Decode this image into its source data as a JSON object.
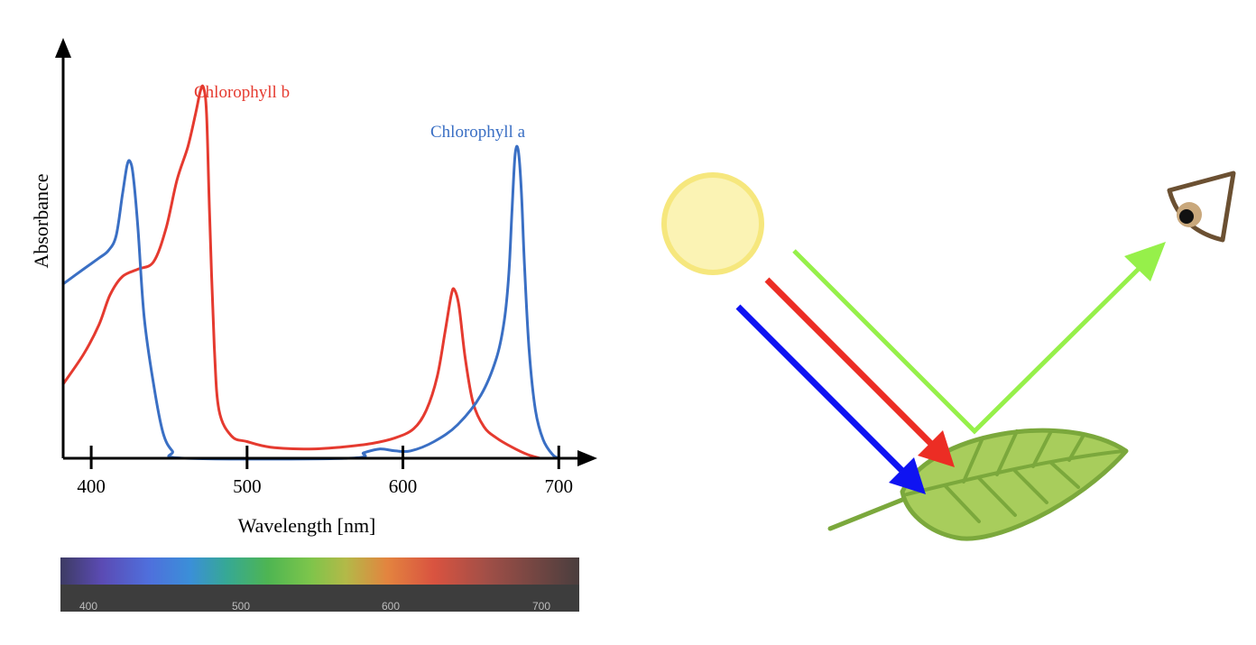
{
  "chart_data": {
    "type": "line",
    "title": "",
    "xlabel": "Wavelength [nm]",
    "ylabel": "Absorbance",
    "xlim": [
      382,
      712
    ],
    "ylim": [
      0,
      1.0
    ],
    "grid": false,
    "legend": "inline labels near peaks",
    "x_ticks": [
      "400",
      "500",
      "600",
      "700"
    ],
    "series": [
      {
        "name": "Chlorophyll b",
        "color": "#e53a2f",
        "points": [
          [
            382,
            0.2
          ],
          [
            395,
            0.28
          ],
          [
            405,
            0.36
          ],
          [
            412,
            0.44
          ],
          [
            420,
            0.49
          ],
          [
            430,
            0.51
          ],
          [
            440,
            0.53
          ],
          [
            448,
            0.62
          ],
          [
            455,
            0.75
          ],
          [
            462,
            0.84
          ],
          [
            467,
            0.93
          ],
          [
            470,
            0.99
          ],
          [
            472,
            1.0
          ],
          [
            474,
            0.93
          ],
          [
            476,
            0.65
          ],
          [
            479,
            0.3
          ],
          [
            482,
            0.13
          ],
          [
            490,
            0.06
          ],
          [
            500,
            0.045
          ],
          [
            515,
            0.03
          ],
          [
            540,
            0.025
          ],
          [
            560,
            0.03
          ],
          [
            580,
            0.04
          ],
          [
            595,
            0.055
          ],
          [
            607,
            0.08
          ],
          [
            615,
            0.13
          ],
          [
            622,
            0.22
          ],
          [
            627,
            0.34
          ],
          [
            631,
            0.44
          ],
          [
            633,
            0.455
          ],
          [
            636,
            0.41
          ],
          [
            640,
            0.27
          ],
          [
            645,
            0.15
          ],
          [
            652,
            0.085
          ],
          [
            660,
            0.055
          ],
          [
            670,
            0.03
          ],
          [
            680,
            0.01
          ],
          [
            688,
            0.0
          ]
        ]
      },
      {
        "name": "Chlorophyll a",
        "color": "#3a6fc4",
        "points": [
          [
            382,
            0.47
          ],
          [
            395,
            0.51
          ],
          [
            405,
            0.54
          ],
          [
            411,
            0.56
          ],
          [
            416,
            0.6
          ],
          [
            420,
            0.71
          ],
          [
            423,
            0.79
          ],
          [
            425,
            0.8
          ],
          [
            427,
            0.76
          ],
          [
            430,
            0.62
          ],
          [
            434,
            0.38
          ],
          [
            440,
            0.2
          ],
          [
            446,
            0.07
          ],
          [
            452,
            0.02
          ],
          [
            460,
            0.0
          ],
          [
            565,
            0.0
          ],
          [
            575,
            0.015
          ],
          [
            585,
            0.025
          ],
          [
            595,
            0.02
          ],
          [
            605,
            0.02
          ],
          [
            620,
            0.045
          ],
          [
            635,
            0.09
          ],
          [
            650,
            0.17
          ],
          [
            660,
            0.27
          ],
          [
            665,
            0.37
          ],
          [
            668,
            0.5
          ],
          [
            670,
            0.67
          ],
          [
            672,
            0.82
          ],
          [
            674,
            0.83
          ],
          [
            676,
            0.72
          ],
          [
            678,
            0.52
          ],
          [
            681,
            0.29
          ],
          [
            685,
            0.13
          ],
          [
            690,
            0.05
          ],
          [
            696,
            0.01
          ],
          [
            700,
            0.0
          ]
        ]
      }
    ]
  },
  "spectrum_bar": {
    "labels": [
      "400",
      "500",
      "600",
      "700"
    ]
  },
  "illustration": {
    "sun_color": "#fbf3b4",
    "sun_stroke": "#f6e77d",
    "blue_arrow_color": "#0f13f2",
    "red_arrow_color": "#ec2d24",
    "green_arrow_color": "#96f04a",
    "leaf_color": "#a8cd5c",
    "leaf_stroke": "#7ba83c",
    "eye_color": "#6b5032"
  }
}
